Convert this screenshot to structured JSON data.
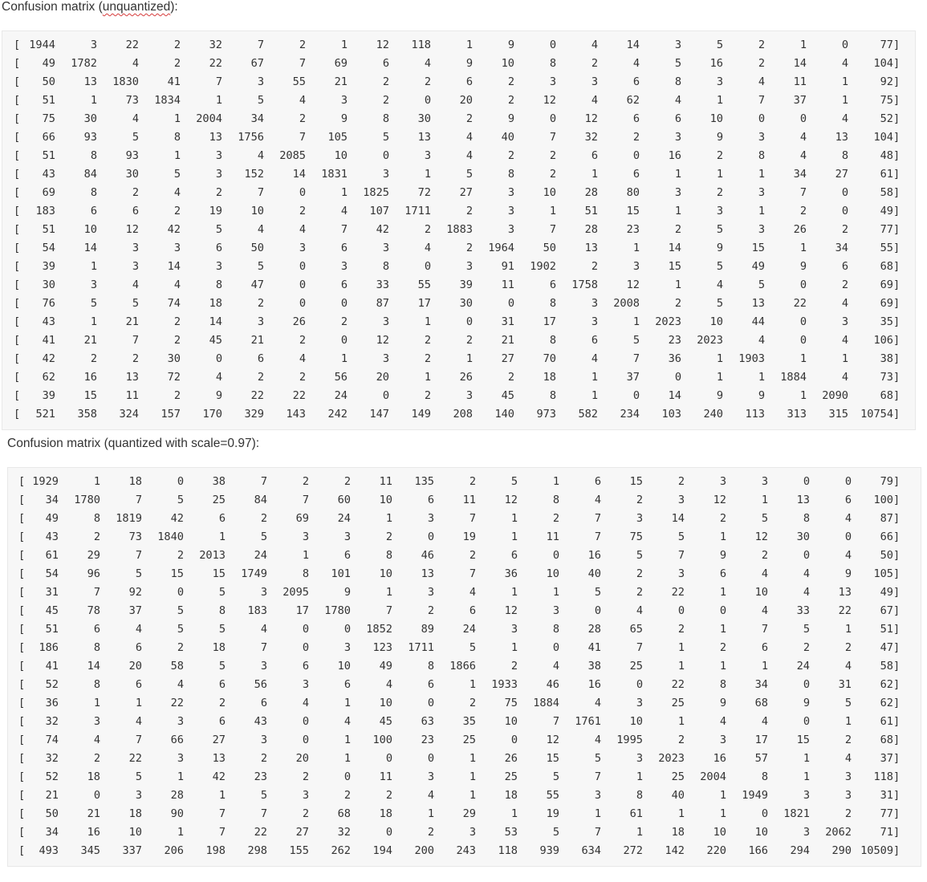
{
  "sections": [
    {
      "title_prefix": "Confusion matrix (",
      "title_word": "unquantized",
      "title_suffix": "):",
      "rows": [
        [
          1944,
          3,
          22,
          2,
          32,
          7,
          2,
          1,
          12,
          118,
          1,
          9,
          0,
          4,
          14,
          3,
          5,
          2,
          1,
          0,
          77
        ],
        [
          49,
          1782,
          4,
          2,
          22,
          67,
          7,
          69,
          6,
          4,
          9,
          10,
          8,
          2,
          4,
          5,
          16,
          2,
          14,
          4,
          104
        ],
        [
          50,
          13,
          1830,
          41,
          7,
          3,
          55,
          21,
          2,
          2,
          6,
          2,
          3,
          3,
          6,
          8,
          3,
          4,
          11,
          1,
          92
        ],
        [
          51,
          1,
          73,
          1834,
          1,
          5,
          4,
          3,
          2,
          0,
          20,
          2,
          12,
          4,
          62,
          4,
          1,
          7,
          37,
          1,
          75
        ],
        [
          75,
          30,
          4,
          1,
          2004,
          34,
          2,
          9,
          8,
          30,
          2,
          9,
          0,
          12,
          6,
          6,
          10,
          0,
          0,
          4,
          52
        ],
        [
          66,
          93,
          5,
          8,
          13,
          1756,
          7,
          105,
          5,
          13,
          4,
          40,
          7,
          32,
          2,
          3,
          9,
          3,
          4,
          13,
          104
        ],
        [
          51,
          8,
          93,
          1,
          3,
          4,
          2085,
          10,
          0,
          3,
          4,
          2,
          2,
          6,
          0,
          16,
          2,
          8,
          4,
          8,
          48
        ],
        [
          43,
          84,
          30,
          5,
          3,
          152,
          14,
          1831,
          3,
          1,
          5,
          8,
          2,
          1,
          6,
          1,
          1,
          1,
          34,
          27,
          61
        ],
        [
          69,
          8,
          2,
          4,
          2,
          7,
          0,
          1,
          1825,
          72,
          27,
          3,
          10,
          28,
          80,
          3,
          2,
          3,
          7,
          0,
          58
        ],
        [
          183,
          6,
          6,
          2,
          19,
          10,
          2,
          4,
          107,
          1711,
          2,
          3,
          1,
          51,
          15,
          1,
          3,
          1,
          2,
          0,
          49
        ],
        [
          51,
          10,
          12,
          42,
          5,
          4,
          4,
          7,
          42,
          2,
          1883,
          3,
          7,
          28,
          23,
          2,
          5,
          3,
          26,
          2,
          77
        ],
        [
          54,
          14,
          3,
          3,
          6,
          50,
          3,
          6,
          3,
          4,
          2,
          1964,
          50,
          13,
          1,
          14,
          9,
          15,
          1,
          34,
          55
        ],
        [
          39,
          1,
          3,
          14,
          3,
          5,
          0,
          3,
          8,
          0,
          3,
          91,
          1902,
          2,
          3,
          15,
          5,
          49,
          9,
          6,
          68
        ],
        [
          30,
          3,
          4,
          4,
          8,
          47,
          0,
          6,
          33,
          55,
          39,
          11,
          6,
          1758,
          12,
          1,
          4,
          5,
          0,
          2,
          69
        ],
        [
          76,
          5,
          5,
          74,
          18,
          2,
          0,
          0,
          87,
          17,
          30,
          0,
          8,
          3,
          2008,
          2,
          5,
          13,
          22,
          4,
          69
        ],
        [
          43,
          1,
          21,
          2,
          14,
          3,
          26,
          2,
          3,
          1,
          0,
          31,
          17,
          3,
          1,
          2023,
          10,
          44,
          0,
          3,
          35
        ],
        [
          41,
          21,
          7,
          2,
          45,
          21,
          2,
          0,
          12,
          2,
          2,
          21,
          8,
          6,
          5,
          23,
          2023,
          4,
          0,
          4,
          106
        ],
        [
          42,
          2,
          2,
          30,
          0,
          6,
          4,
          1,
          3,
          2,
          1,
          27,
          70,
          4,
          7,
          36,
          1,
          1903,
          1,
          1,
          38
        ],
        [
          62,
          16,
          13,
          72,
          4,
          2,
          2,
          56,
          20,
          1,
          26,
          2,
          18,
          1,
          37,
          0,
          1,
          1,
          1884,
          4,
          73
        ],
        [
          39,
          15,
          11,
          2,
          9,
          22,
          22,
          24,
          0,
          2,
          3,
          45,
          8,
          1,
          0,
          14,
          9,
          9,
          1,
          2090,
          68
        ],
        [
          521,
          358,
          324,
          157,
          170,
          329,
          143,
          242,
          147,
          149,
          208,
          140,
          973,
          582,
          234,
          103,
          240,
          113,
          313,
          315,
          10754
        ]
      ]
    },
    {
      "title_prefix": "Confusion matrix (quantized with scale=0.97):",
      "title_word": "",
      "title_suffix": "",
      "rows": [
        [
          1929,
          1,
          18,
          0,
          38,
          7,
          2,
          2,
          11,
          135,
          2,
          5,
          1,
          6,
          15,
          2,
          3,
          3,
          0,
          0,
          79
        ],
        [
          34,
          1780,
          7,
          5,
          25,
          84,
          7,
          60,
          10,
          6,
          11,
          12,
          8,
          4,
          2,
          3,
          12,
          1,
          13,
          6,
          100
        ],
        [
          49,
          8,
          1819,
          42,
          6,
          2,
          69,
          24,
          1,
          3,
          7,
          1,
          2,
          7,
          3,
          14,
          2,
          5,
          8,
          4,
          87
        ],
        [
          43,
          2,
          73,
          1840,
          1,
          5,
          3,
          3,
          2,
          0,
          19,
          1,
          11,
          7,
          75,
          5,
          1,
          12,
          30,
          0,
          66
        ],
        [
          61,
          29,
          7,
          2,
          2013,
          24,
          1,
          6,
          8,
          46,
          2,
          6,
          0,
          16,
          5,
          7,
          9,
          2,
          0,
          4,
          50
        ],
        [
          54,
          96,
          5,
          15,
          15,
          1749,
          8,
          101,
          10,
          13,
          7,
          36,
          10,
          40,
          2,
          3,
          6,
          4,
          4,
          9,
          105
        ],
        [
          31,
          7,
          92,
          0,
          5,
          3,
          2095,
          9,
          1,
          3,
          4,
          1,
          1,
          5,
          2,
          22,
          1,
          10,
          4,
          13,
          49
        ],
        [
          45,
          78,
          37,
          5,
          8,
          183,
          17,
          1780,
          7,
          2,
          6,
          12,
          3,
          0,
          4,
          0,
          0,
          4,
          33,
          22,
          67
        ],
        [
          51,
          6,
          4,
          5,
          5,
          4,
          0,
          0,
          1852,
          89,
          24,
          3,
          8,
          28,
          65,
          2,
          1,
          7,
          5,
          1,
          51
        ],
        [
          186,
          8,
          6,
          2,
          18,
          7,
          0,
          3,
          123,
          1711,
          5,
          1,
          0,
          41,
          7,
          1,
          2,
          6,
          2,
          2,
          47
        ],
        [
          41,
          14,
          20,
          58,
          5,
          3,
          6,
          10,
          49,
          8,
          1866,
          2,
          4,
          38,
          25,
          1,
          1,
          1,
          24,
          4,
          58
        ],
        [
          52,
          8,
          6,
          4,
          6,
          56,
          3,
          6,
          4,
          6,
          1,
          1933,
          46,
          16,
          0,
          22,
          8,
          34,
          0,
          31,
          62
        ],
        [
          36,
          1,
          1,
          22,
          2,
          6,
          4,
          1,
          10,
          0,
          2,
          75,
          1884,
          4,
          3,
          25,
          9,
          68,
          9,
          5,
          62
        ],
        [
          32,
          3,
          4,
          3,
          6,
          43,
          0,
          4,
          45,
          63,
          35,
          10,
          7,
          1761,
          10,
          1,
          4,
          4,
          0,
          1,
          61
        ],
        [
          74,
          4,
          7,
          66,
          27,
          3,
          0,
          1,
          100,
          23,
          25,
          0,
          12,
          4,
          1995,
          2,
          3,
          17,
          15,
          2,
          68
        ],
        [
          32,
          2,
          22,
          3,
          13,
          2,
          20,
          1,
          0,
          0,
          1,
          26,
          15,
          5,
          3,
          2023,
          16,
          57,
          1,
          4,
          37
        ],
        [
          52,
          18,
          5,
          1,
          42,
          23,
          2,
          0,
          11,
          3,
          1,
          25,
          5,
          7,
          1,
          25,
          2004,
          8,
          1,
          3,
          118
        ],
        [
          21,
          0,
          3,
          28,
          1,
          5,
          3,
          2,
          2,
          4,
          1,
          18,
          55,
          3,
          8,
          40,
          1,
          1949,
          3,
          3,
          31
        ],
        [
          50,
          21,
          18,
          90,
          7,
          7,
          2,
          68,
          18,
          1,
          29,
          1,
          19,
          1,
          61,
          1,
          1,
          0,
          1821,
          2,
          77
        ],
        [
          34,
          16,
          10,
          1,
          7,
          22,
          27,
          32,
          0,
          2,
          3,
          53,
          5,
          7,
          1,
          18,
          10,
          10,
          3,
          2062,
          71
        ],
        [
          493,
          345,
          337,
          206,
          198,
          298,
          155,
          262,
          194,
          200,
          243,
          118,
          939,
          634,
          272,
          142,
          220,
          166,
          294,
          290,
          10509
        ]
      ]
    }
  ]
}
